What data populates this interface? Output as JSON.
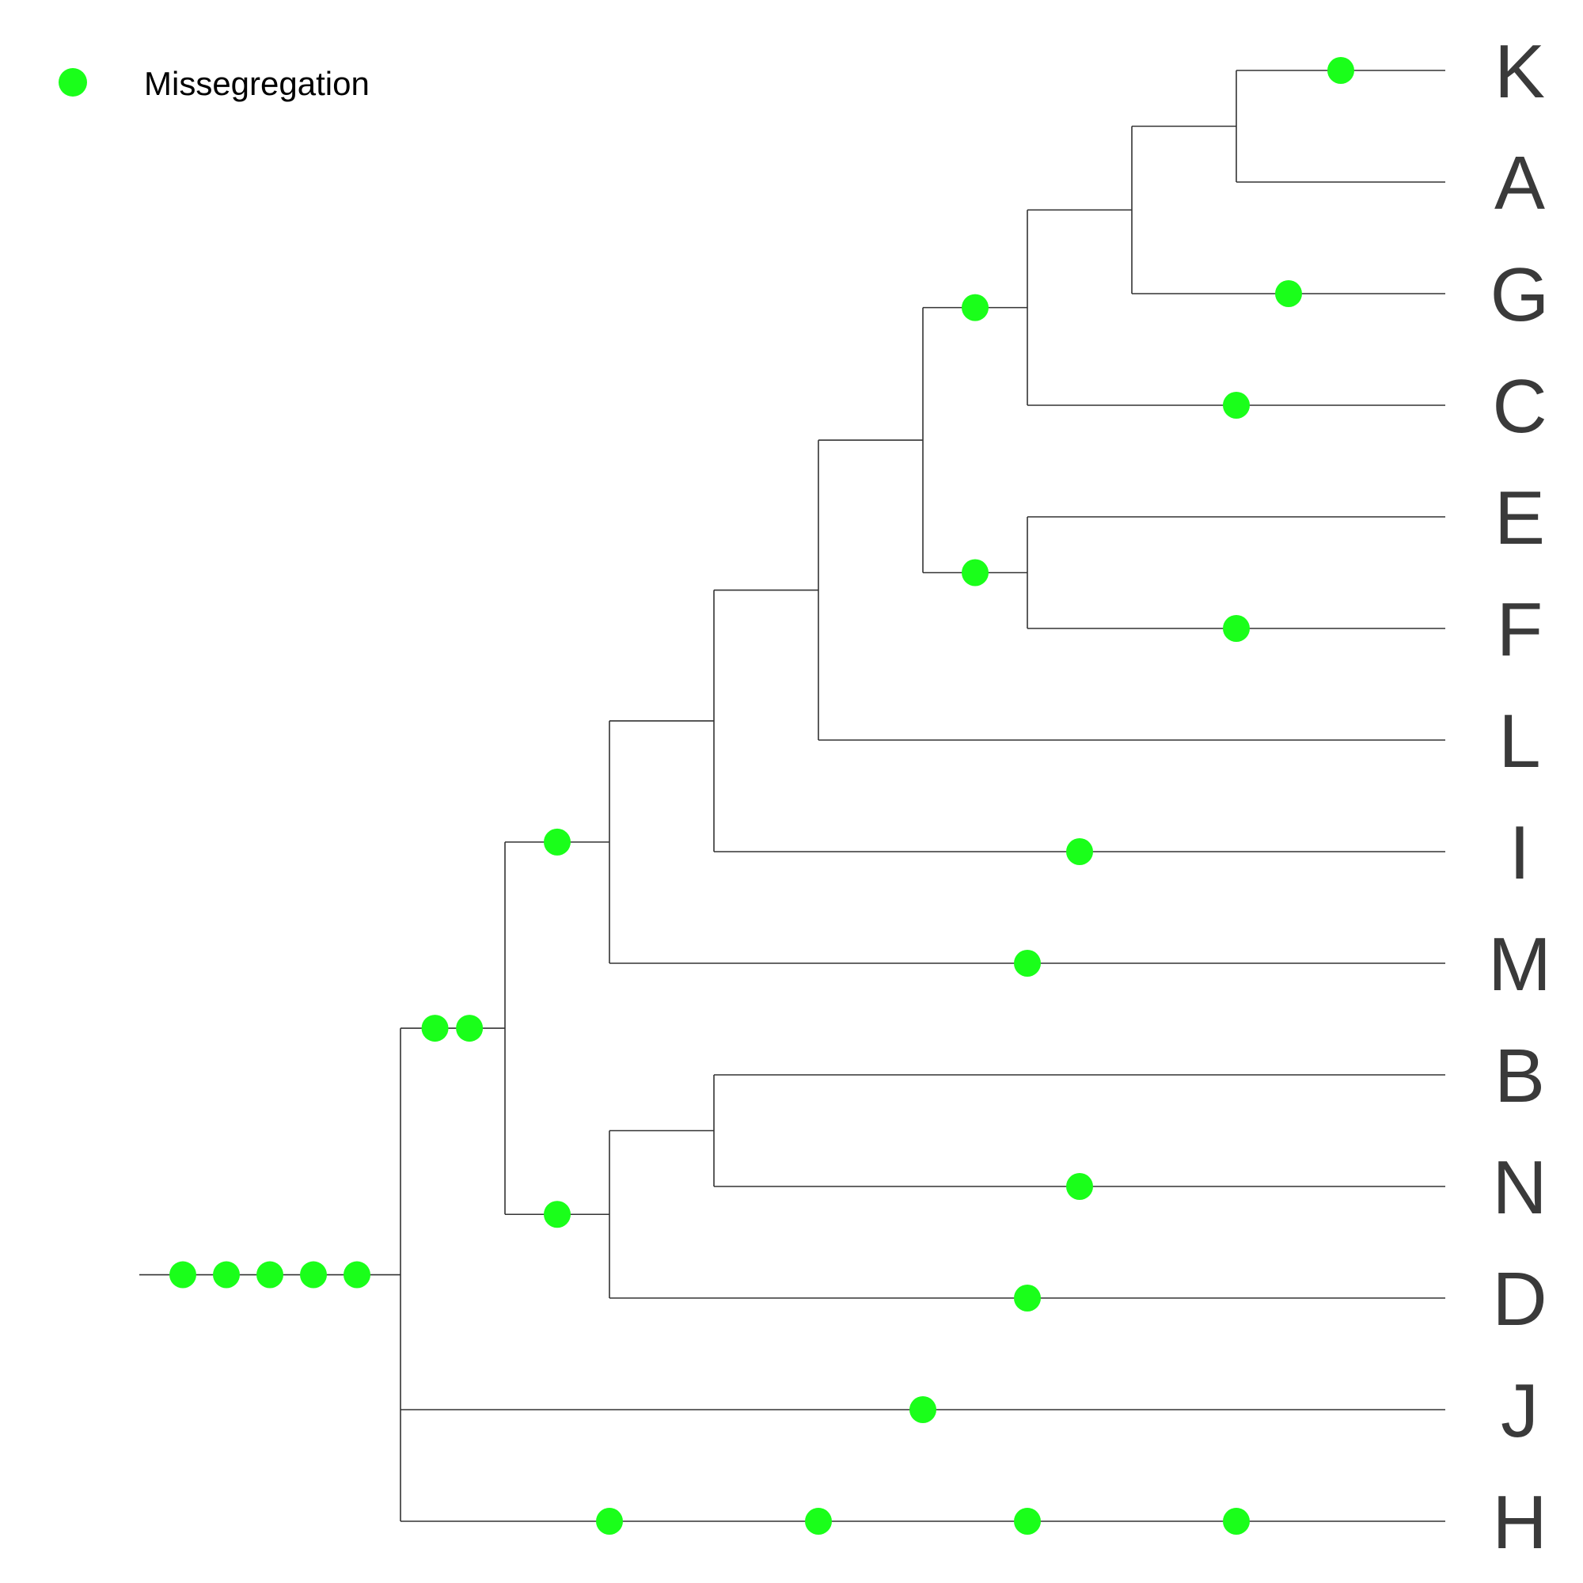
{
  "legend": {
    "label": "Missegregation",
    "marker_color": "#1aff1a"
  },
  "colors": {
    "branch": "#333333",
    "event": "#1aff1a",
    "label": "#3a3a3a"
  },
  "tips": [
    "K",
    "A",
    "G",
    "C",
    "E",
    "F",
    "L",
    "I",
    "M",
    "B",
    "N",
    "D",
    "J",
    "H"
  ],
  "tree": {
    "id": "root",
    "events": 5,
    "children": [
      {
        "id": "n1",
        "events": 2,
        "children": [
          {
            "id": "n2",
            "events": 1,
            "children": [
              {
                "id": "n3",
                "events": 0,
                "children": [
                  {
                    "id": "n4",
                    "events": 0,
                    "children": [
                      {
                        "id": "n5",
                        "events": 0,
                        "children": [
                          {
                            "id": "n6",
                            "events": 1,
                            "children": [
                              {
                                "id": "n7",
                                "events": 0,
                                "children": [
                                  {
                                    "id": "n8",
                                    "events": 0,
                                    "children": [
                                      {
                                        "tip": "K",
                                        "events": 1
                                      },
                                      {
                                        "tip": "A",
                                        "events": 0
                                      }
                                    ]
                                  },
                                  {
                                    "tip": "G",
                                    "events": 1
                                  }
                                ]
                              },
                              {
                                "tip": "C",
                                "events": 1
                              }
                            ]
                          },
                          {
                            "id": "n9",
                            "events": 1,
                            "children": [
                              {
                                "tip": "E",
                                "events": 0
                              },
                              {
                                "tip": "F",
                                "events": 1
                              }
                            ]
                          }
                        ]
                      },
                      {
                        "tip": "L",
                        "events": 0
                      }
                    ]
                  },
                  {
                    "tip": "I",
                    "events": 1
                  }
                ]
              },
              {
                "tip": "M",
                "events": 1
              }
            ]
          },
          {
            "id": "n10",
            "events": 1,
            "children": [
              {
                "id": "n11",
                "events": 0,
                "children": [
                  {
                    "tip": "B",
                    "events": 0
                  },
                  {
                    "tip": "N",
                    "events": 1
                  }
                ]
              },
              {
                "tip": "D",
                "events": 1
              }
            ]
          }
        ]
      },
      {
        "tip": "J",
        "events": 1
      },
      {
        "tip": "H",
        "events": 4
      }
    ]
  }
}
